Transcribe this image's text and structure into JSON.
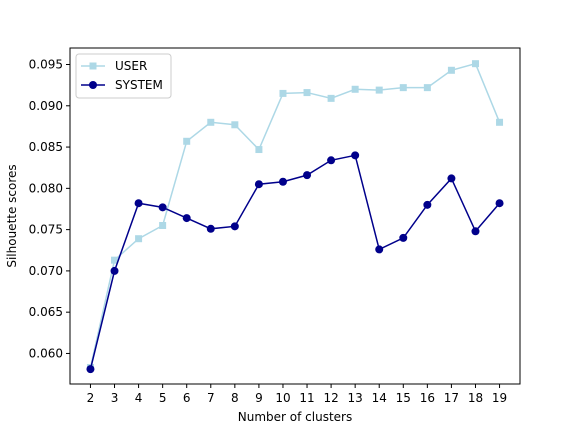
{
  "chart_data": {
    "type": "line",
    "xlabel": "Number of clusters",
    "ylabel": "Silhouette scores",
    "x": [
      2,
      3,
      4,
      5,
      6,
      7,
      8,
      9,
      10,
      11,
      12,
      13,
      14,
      15,
      16,
      17,
      18,
      19
    ],
    "xlim": [
      1.15,
      19.85
    ],
    "ylim": [
      0.0563,
      0.097
    ],
    "yticks": [
      0.06,
      0.065,
      0.07,
      0.075,
      0.08,
      0.085,
      0.09,
      0.095
    ],
    "ytick_labels": [
      "0.060",
      "0.065",
      "0.070",
      "0.075",
      "0.080",
      "0.085",
      "0.090",
      "0.095"
    ],
    "grid": false,
    "legend_position": "top-left",
    "series": [
      {
        "name": "USER",
        "color": "#add8e6",
        "marker": "square",
        "values": [
          0.0583,
          0.0713,
          0.0739,
          0.0755,
          0.0857,
          0.088,
          0.0877,
          0.0847,
          0.0915,
          0.0916,
          0.0909,
          0.092,
          0.0919,
          0.0922,
          0.0922,
          0.0943,
          0.0951,
          0.088
        ]
      },
      {
        "name": "SYSTEM",
        "color": "#00008b",
        "marker": "circle",
        "values": [
          0.0581,
          0.07,
          0.0782,
          0.0777,
          0.0764,
          0.0751,
          0.0754,
          0.0805,
          0.0808,
          0.0816,
          0.0834,
          0.084,
          0.0726,
          0.074,
          0.078,
          0.0812,
          0.0748,
          0.0782
        ]
      }
    ]
  }
}
